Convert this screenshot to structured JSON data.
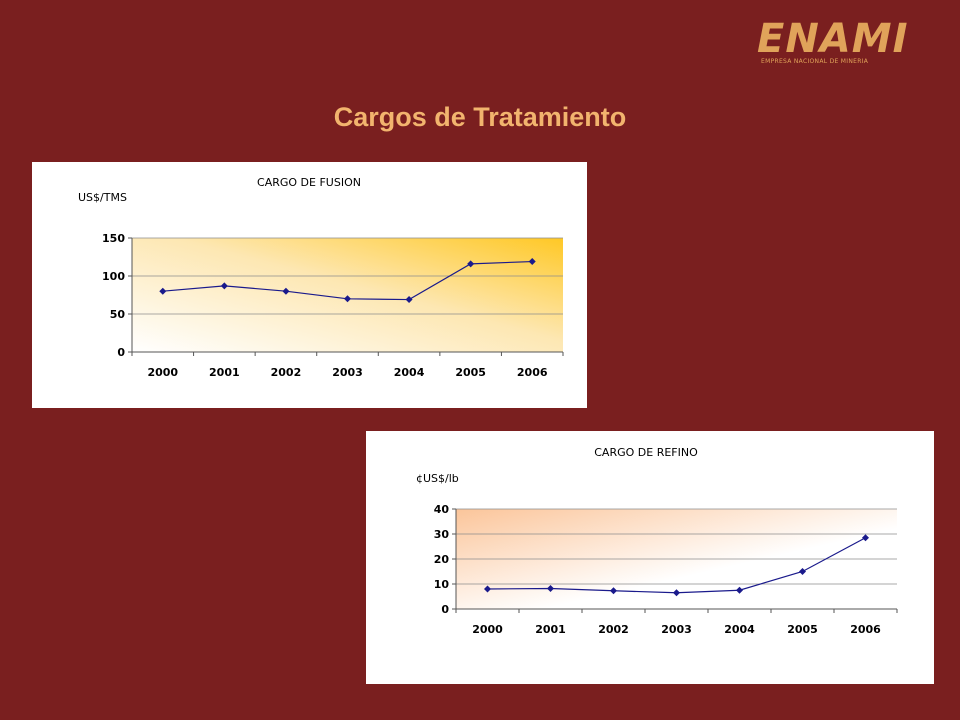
{
  "slide": {
    "title": "Cargos de Tratamiento",
    "logo": {
      "text": "ENAMI",
      "subtitle": "EMPRESA NACIONAL DE MINERIA",
      "color": "#e0a35a"
    },
    "background": "#7a1f1f",
    "title_color": "#f2b46e"
  },
  "chart_data": [
    {
      "type": "line",
      "title": "CARGO DE FUSION",
      "ylabel": "US$/TMS",
      "xlabel": "",
      "categories": [
        "2000",
        "2001",
        "2002",
        "2003",
        "2004",
        "2005",
        "2006"
      ],
      "series": [
        {
          "values": [
            80,
            87,
            80,
            70,
            69,
            116,
            119
          ],
          "color": "#1a1a8c"
        }
      ],
      "ylim": [
        0,
        150
      ],
      "yticks": [
        0,
        50,
        100,
        150
      ],
      "grid": true,
      "plot_gradient": "light-to-gold (top-right)"
    },
    {
      "type": "line",
      "title": "CARGO DE REFINO",
      "ylabel": "¢US$/lb",
      "xlabel": "",
      "categories": [
        "2000",
        "2001",
        "2002",
        "2003",
        "2004",
        "2005",
        "2006"
      ],
      "series": [
        {
          "values": [
            8,
            8.2,
            7.3,
            6.5,
            7.5,
            15,
            28.5
          ],
          "color": "#1a1a8c"
        }
      ],
      "ylim": [
        0,
        40
      ],
      "yticks": [
        0,
        10,
        20,
        30,
        40
      ],
      "grid": true,
      "plot_gradient": "peach-to-white (top-left)"
    }
  ]
}
